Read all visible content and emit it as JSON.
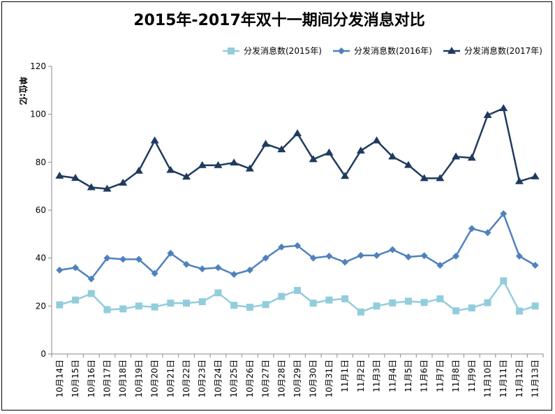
{
  "chart_data": {
    "type": "line",
    "title": "2015年-2017年双十一期间分发消息对比",
    "ylabel": "单位:亿",
    "xlabel": "",
    "ylim": [
      0,
      120
    ],
    "yticks": [
      0,
      20,
      40,
      60,
      80,
      100,
      120
    ],
    "grid": false,
    "legend_position": "top-right",
    "categories": [
      "10月14日",
      "10月15日",
      "10月16日",
      "10月17日",
      "10月18日",
      "10月19日",
      "10月20日",
      "10月21日",
      "10月22日",
      "10月23日",
      "10月24日",
      "10月25日",
      "10月26日",
      "10月27日",
      "10月28日",
      "10月29日",
      "10月30日",
      "10月31日",
      "11月1日",
      "11月2日",
      "11月3日",
      "11月4日",
      "11月5日",
      "11月6日",
      "11月7日",
      "11月8日",
      "11月9日",
      "11月10日",
      "11月11日",
      "11月12日",
      "11月13日"
    ],
    "series": [
      {
        "name": "分发消息数(2015年)",
        "marker": "square",
        "color": "#92cddc",
        "values": [
          20.5,
          22.5,
          25.2,
          18.5,
          18.8,
          20.0,
          19.6,
          21.2,
          21.2,
          21.8,
          25.5,
          20.3,
          19.5,
          20.6,
          24.0,
          26.5,
          21.2,
          22.5,
          23.0,
          17.5,
          20.0,
          21.3,
          22.0,
          21.5,
          23.0,
          18.0,
          19.2,
          21.4,
          30.5,
          17.9,
          20.0
        ]
      },
      {
        "name": "分发消息数(2016年)",
        "marker": "diamond",
        "color": "#4f81bd",
        "values": [
          35.0,
          36.0,
          31.3,
          40.0,
          39.5,
          39.5,
          33.6,
          42.0,
          37.4,
          35.5,
          36.0,
          33.2,
          35.0,
          40.0,
          44.6,
          45.2,
          40.0,
          40.8,
          38.3,
          41.1,
          41.1,
          43.5,
          40.5,
          41.0,
          37.0,
          40.8,
          52.3,
          50.6,
          58.5,
          40.8,
          37.0
        ]
      },
      {
        "name": "分发消息数(2017年)",
        "marker": "triangle",
        "color": "#1f3a5f",
        "values": [
          74.3,
          73.4,
          69.5,
          68.9,
          71.4,
          76.4,
          89.0,
          76.7,
          73.9,
          78.7,
          78.7,
          79.8,
          77.3,
          87.6,
          85.3,
          92.0,
          81.2,
          84.0,
          74.2,
          84.8,
          89.0,
          82.3,
          78.8,
          73.3,
          73.3,
          82.3,
          81.8,
          99.6,
          102.5,
          72.0,
          74.0
        ]
      }
    ]
  }
}
